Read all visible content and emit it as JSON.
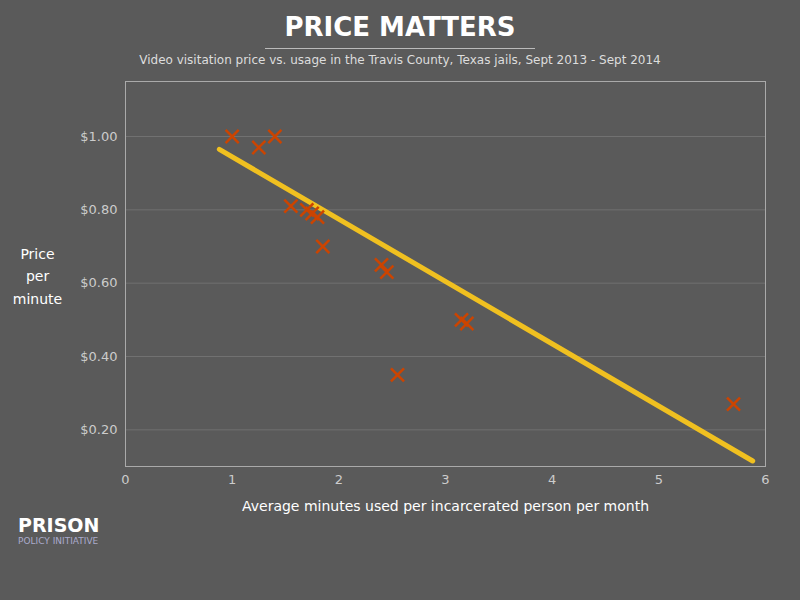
{
  "chart_data": {
    "type": "scatter",
    "title": "PRICE MATTERS",
    "subtitle": "Video visitation price vs. usage in the Travis County, Texas jails,  Sept 2013 - Sept 2014",
    "xlabel": "Average minutes used per incarcerated person per month",
    "ylabel": "Price\nper\nminute",
    "series": [
      {
        "type": "line",
        "color": "#f0c020",
        "x": [
          0.88,
          5.88
        ],
        "values": [
          0.965,
          0.115
        ]
      },
      {
        "type": "scatter",
        "marker": "x",
        "color": "#cc4400",
        "x": [
          1.0,
          1.25,
          1.4,
          1.55,
          1.7,
          1.75,
          1.8,
          1.85,
          2.4,
          2.45,
          2.55,
          3.15,
          3.2,
          5.7
        ],
        "values": [
          1.0,
          0.97,
          1.0,
          0.81,
          0.8,
          0.79,
          0.78,
          0.7,
          0.65,
          0.63,
          0.35,
          0.5,
          0.49,
          0.27
        ]
      }
    ],
    "xlim": [
      0,
      6
    ],
    "ylim": [
      0.1,
      1.15
    ],
    "xticks": [
      0,
      1,
      2,
      3,
      4,
      5,
      6
    ],
    "yticks": [
      {
        "value": 0.2,
        "label": "$0.20"
      },
      {
        "value": 0.4,
        "label": "$0.40"
      },
      {
        "value": 0.6,
        "label": "$0.60"
      },
      {
        "value": 0.8,
        "label": "$0.80"
      },
      {
        "value": 1.0,
        "label": "$1.00"
      }
    ],
    "grid": "y",
    "annotations": [
      "PRISON",
      "POLICY INITIATIVE"
    ]
  }
}
